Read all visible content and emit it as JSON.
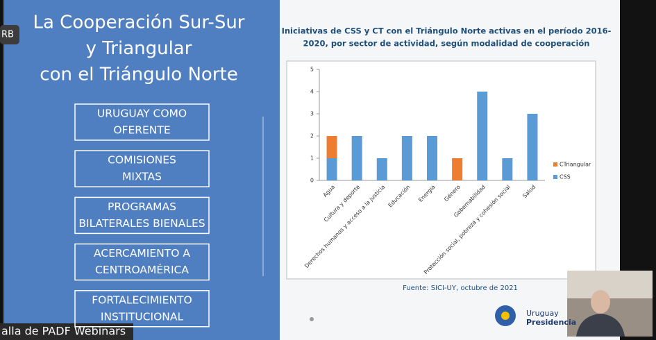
{
  "slide": {
    "title_lines": [
      "La Cooperación Sur-Sur",
      "y Triangular",
      "con el Triángulo Norte"
    ],
    "buttons": [
      [
        "URUGUAY COMO",
        "OFERENTE"
      ],
      [
        "COMISIONES",
        "MIXTAS"
      ],
      [
        "PROGRAMAS",
        "BILATERALES BIENALES"
      ],
      [
        "ACERCAMIENTO A",
        "CENTROAMÉRICA"
      ],
      [
        "FORTALECIMIENTO",
        "INSTITUCIONAL"
      ]
    ],
    "source": "Fuente: SICI-UY, octubre de 2021",
    "logo": [
      "Uruguay",
      "Presidencia"
    ]
  },
  "overlay": {
    "badge": "RB",
    "caption": "alla de PADF Webinars"
  },
  "chart_data": {
    "type": "stacked-bar",
    "title": [
      "Iniciativas de CSS y CT con el Triángulo Norte activas en el período 2016-",
      "2020, por sector de actividad, según modalidad de cooperación"
    ],
    "categories": [
      "Agua",
      "Cultura y deporte",
      "Derechos humanos y acceso a la justicia",
      "Educación",
      "Energía",
      "Género",
      "Gobernabilidad",
      "Protección social, pobreza y cohesión social",
      "Salud"
    ],
    "series": [
      {
        "name": "CSS",
        "color": "#5b9bd5",
        "values": [
          1,
          2,
          1,
          2,
          2,
          0,
          4,
          1,
          3
        ]
      },
      {
        "name": "CTriangular",
        "color": "#ed7d31",
        "values": [
          1,
          0,
          0,
          0,
          0,
          1,
          0,
          0,
          0
        ]
      }
    ],
    "ylim": [
      0,
      5
    ],
    "yticks": [
      0,
      1,
      2,
      3,
      4,
      5
    ],
    "grid": false,
    "legend": "right"
  }
}
